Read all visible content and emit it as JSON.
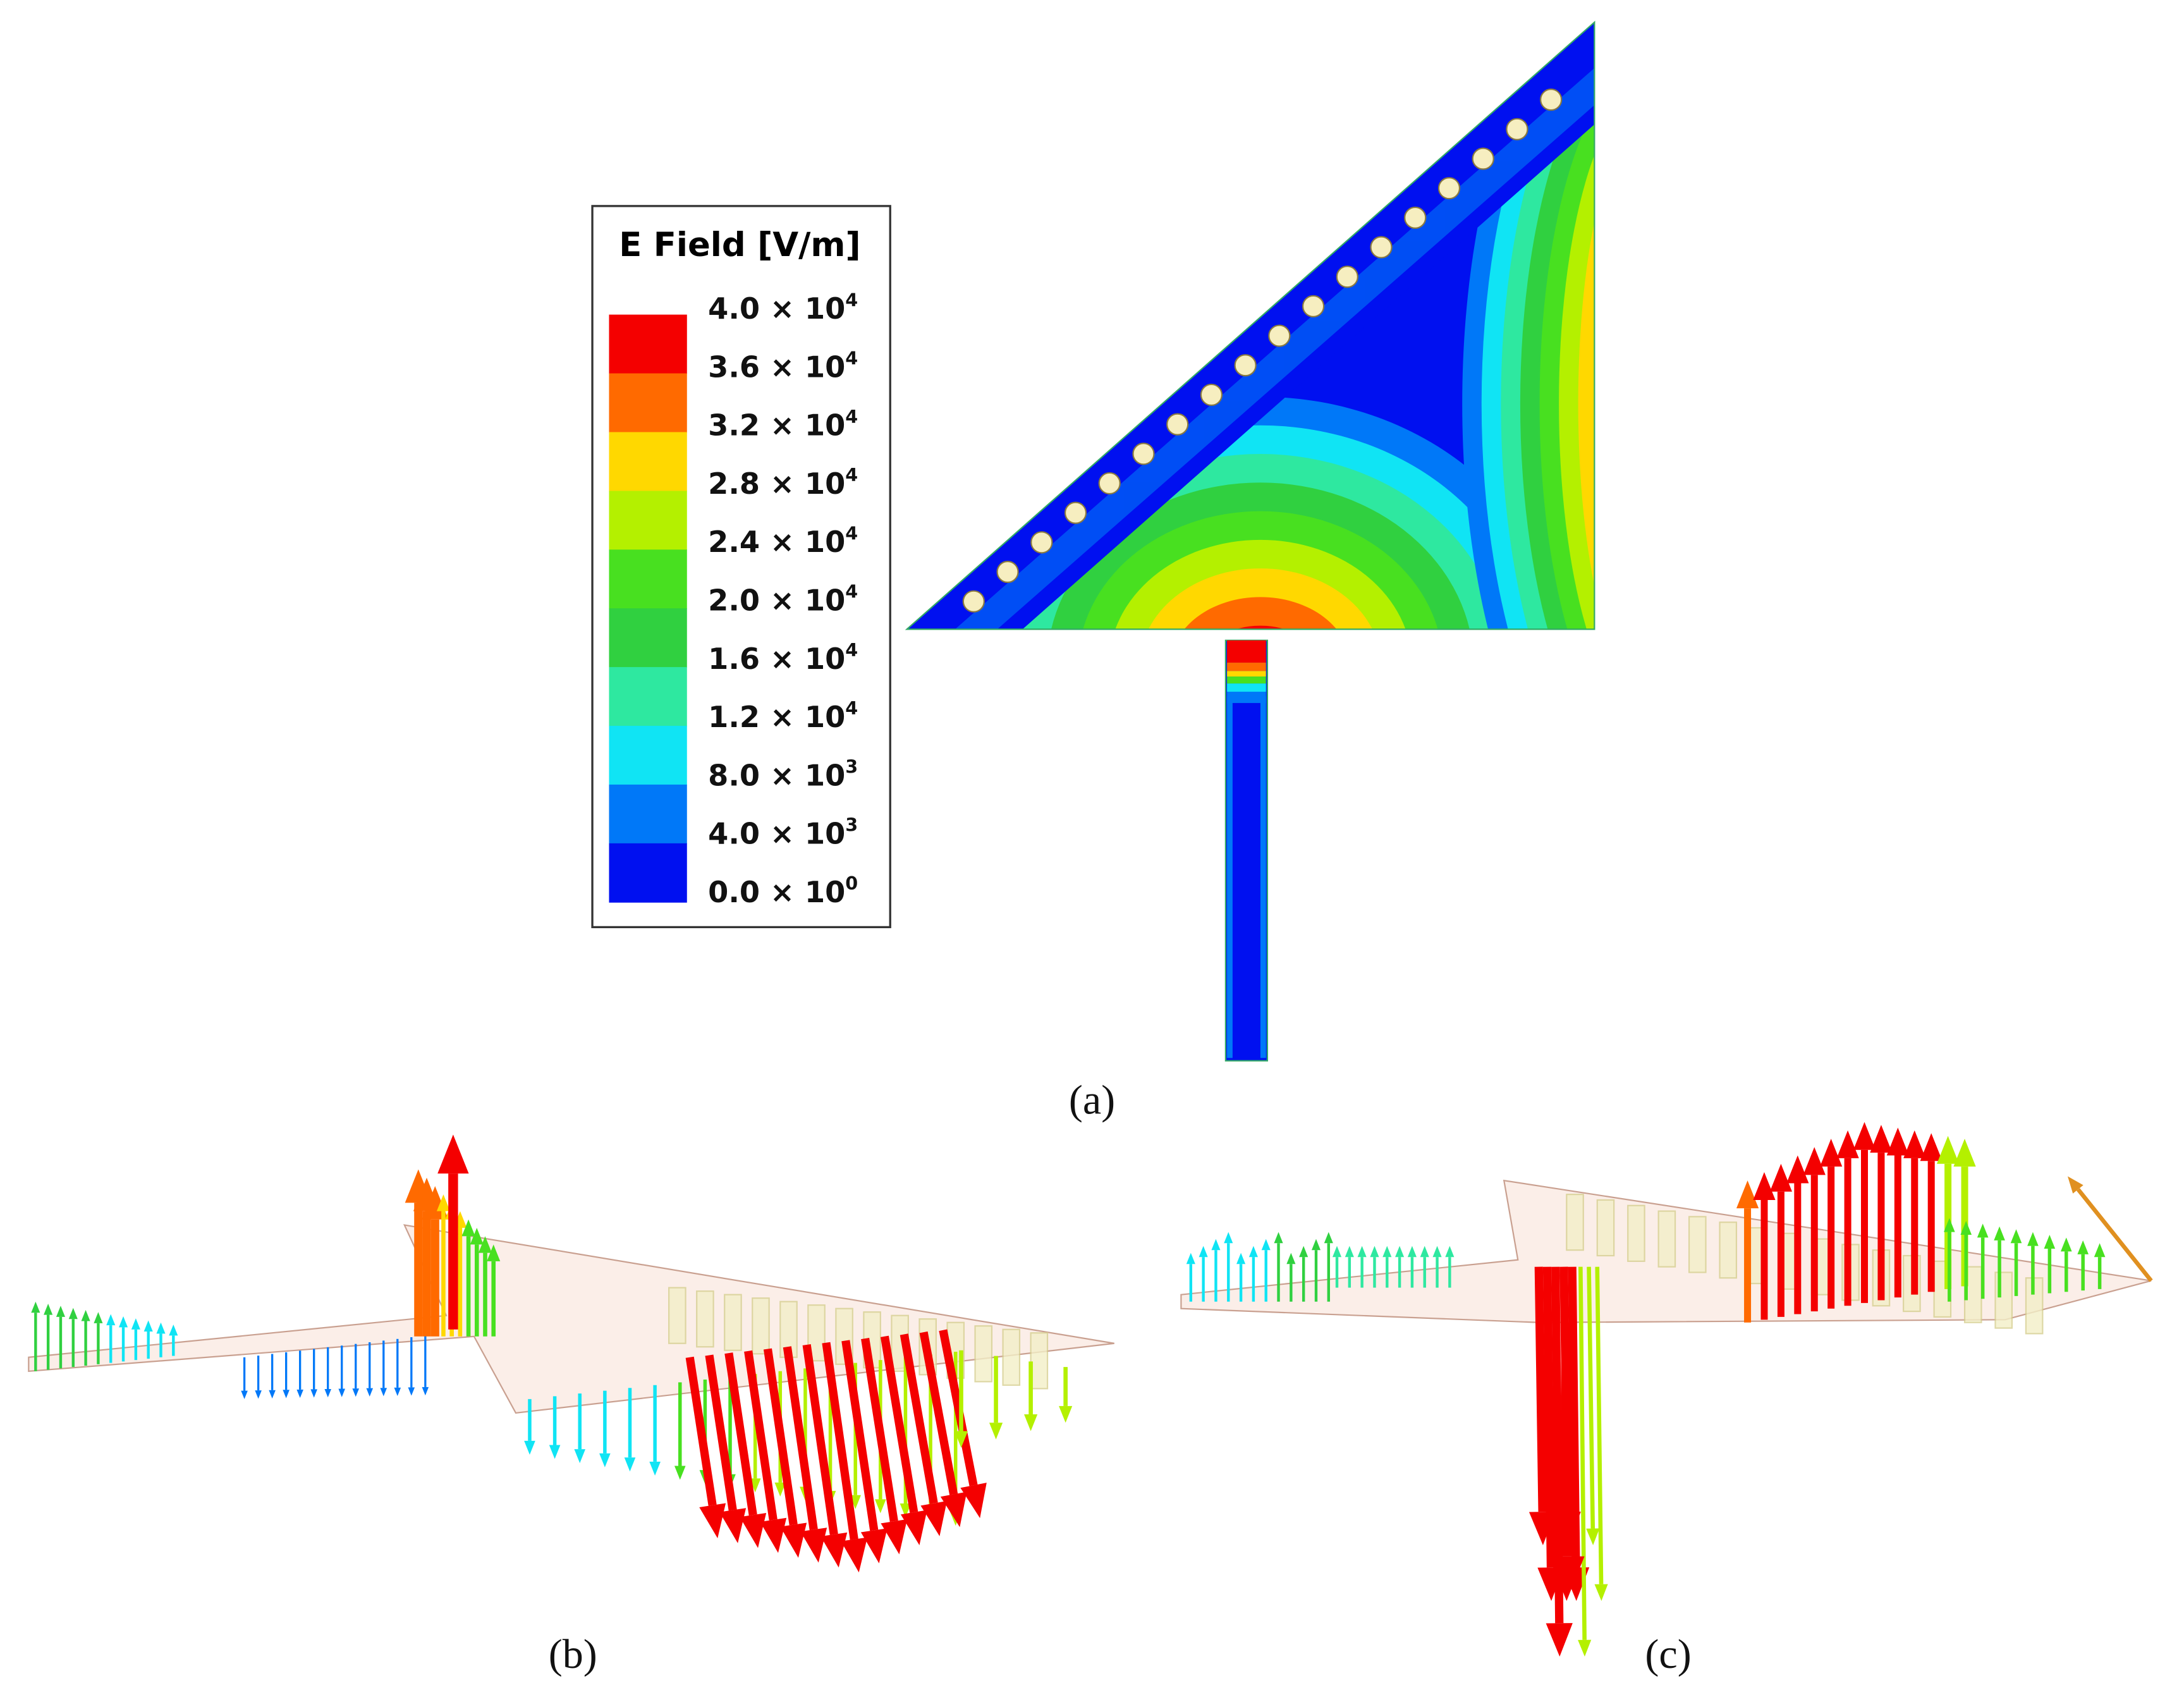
{
  "legend": {
    "title": "E Field [V/m]",
    "labels": [
      {
        "mantissa": "4.0 × 10",
        "exponent": "4"
      },
      {
        "mantissa": "3.6 × 10",
        "exponent": "4"
      },
      {
        "mantissa": "3.2 × 10",
        "exponent": "4"
      },
      {
        "mantissa": "2.8 × 10",
        "exponent": "4"
      },
      {
        "mantissa": "2.4 × 10",
        "exponent": "4"
      },
      {
        "mantissa": "2.0 × 10",
        "exponent": "4"
      },
      {
        "mantissa": "1.6 × 10",
        "exponent": "4"
      },
      {
        "mantissa": "1.2 × 10",
        "exponent": "4"
      },
      {
        "mantissa": "8.0 × 10",
        "exponent": "3"
      },
      {
        "mantissa": "4.0 × 10",
        "exponent": "3"
      },
      {
        "mantissa": "0.0 × 10",
        "exponent": "0"
      }
    ],
    "colors": [
      "#f40000",
      "#ff6a00",
      "#ffd800",
      "#b4f000",
      "#48e020",
      "#30d040",
      "#2ee8a0",
      "#10e4f4",
      "#0078f8",
      "#0010f0"
    ]
  },
  "panels": {
    "a": "(a)",
    "b": "(b)",
    "c": "(c)"
  }
}
